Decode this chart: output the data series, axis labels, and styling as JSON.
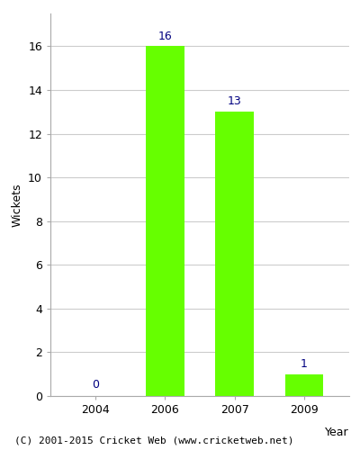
{
  "years": [
    "2004",
    "2006",
    "2007",
    "2009"
  ],
  "values": [
    0,
    16,
    13,
    1
  ],
  "bar_color": "#66ff00",
  "bar_edgecolor": "#66ff00",
  "xlabel": "Year",
  "ylabel": "Wickets",
  "ylim": [
    0,
    17.5
  ],
  "yticks": [
    0,
    2,
    4,
    6,
    8,
    10,
    12,
    14,
    16
  ],
  "annotation_color": "#000080",
  "annotation_fontsize": 9,
  "footer": "(C) 2001-2015 Cricket Web (www.cricketweb.net)",
  "footer_fontsize": 8,
  "background_color": "#ffffff",
  "axes_background": "#ffffff",
  "grid_color": "#cccccc",
  "bar_width": 0.55
}
